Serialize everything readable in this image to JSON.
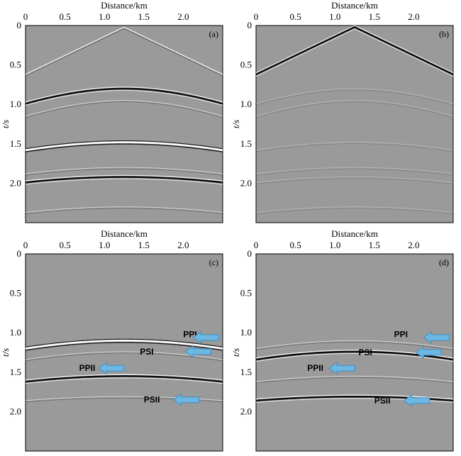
{
  "chart_data": [
    {
      "type": "seismic-section",
      "panel_label": "(a)",
      "xlabel": "Distance/km",
      "ylabel": "t/s",
      "xlim": [
        0,
        2.5
      ],
      "ylim": [
        0,
        2.5
      ],
      "x_ticks": [
        "0",
        "0.5",
        "1.0",
        "1.5",
        "2.0"
      ],
      "y_ticks": [
        "0",
        "0.5",
        "1.0",
        "1.5",
        "2.0"
      ],
      "background_color": "#9a9a9a",
      "events": [
        {
          "shape": "direct",
          "apex_x": 1.25,
          "t0": 0.02,
          "t_edge": 0.62,
          "amplitude": "weak-white"
        },
        {
          "shape": "hyperbola",
          "apex_x": 1.25,
          "t0": 0.8,
          "t_edge": 0.99,
          "amplitude": "strong-black"
        },
        {
          "shape": "hyperbola",
          "apex_x": 1.25,
          "t0": 0.95,
          "t_edge": 1.15,
          "amplitude": "weak"
        },
        {
          "shape": "hyperbola",
          "apex_x": 1.25,
          "t0": 1.48,
          "t_edge": 1.58,
          "amplitude": "strong-white"
        },
        {
          "shape": "hyperbola",
          "apex_x": 1.25,
          "t0": 1.8,
          "t_edge": 1.88,
          "amplitude": "weak"
        },
        {
          "shape": "hyperbola",
          "apex_x": 1.25,
          "t0": 1.92,
          "t_edge": 1.99,
          "amplitude": "strong-black"
        },
        {
          "shape": "hyperbola",
          "apex_x": 1.25,
          "t0": 2.3,
          "t_edge": 2.37,
          "amplitude": "weak"
        }
      ]
    },
    {
      "type": "seismic-section",
      "panel_label": "(b)",
      "xlabel": "Distance/km",
      "ylabel": "t/s",
      "xlim": [
        0,
        2.5
      ],
      "ylim": [
        0,
        2.5
      ],
      "x_ticks": [
        "0",
        "0.5",
        "1.0",
        "1.5",
        "2.0"
      ],
      "y_ticks": [
        "0",
        "0.5",
        "1.0",
        "1.5",
        "2.0"
      ],
      "background_color": "#9a9a9a",
      "events": [
        {
          "shape": "direct",
          "apex_x": 1.25,
          "t0": 0.02,
          "t_edge": 0.62,
          "amplitude": "strong-black"
        },
        {
          "shape": "hyperbola",
          "apex_x": 1.25,
          "t0": 0.8,
          "t_edge": 0.99,
          "amplitude": "faint"
        },
        {
          "shape": "hyperbola",
          "apex_x": 1.25,
          "t0": 0.95,
          "t_edge": 1.15,
          "amplitude": "faint"
        },
        {
          "shape": "hyperbola",
          "apex_x": 1.25,
          "t0": 1.48,
          "t_edge": 1.58,
          "amplitude": "faint"
        },
        {
          "shape": "hyperbola",
          "apex_x": 1.25,
          "t0": 1.8,
          "t_edge": 1.88,
          "amplitude": "faint"
        },
        {
          "shape": "hyperbola",
          "apex_x": 1.25,
          "t0": 1.92,
          "t_edge": 1.99,
          "amplitude": "faint"
        },
        {
          "shape": "hyperbola",
          "apex_x": 1.25,
          "t0": 2.3,
          "t_edge": 2.37,
          "amplitude": "faint"
        }
      ]
    },
    {
      "type": "seismic-section",
      "panel_label": "(c)",
      "xlabel": "Distance/km",
      "ylabel": "t/s",
      "xlim": [
        0,
        2.5
      ],
      "ylim": [
        0,
        2.5
      ],
      "x_ticks": [
        "0",
        "0.5",
        "1.0",
        "1.5",
        "2.0"
      ],
      "y_ticks": [
        "0",
        "0.5",
        "1.0",
        "1.5",
        "2.0"
      ],
      "background_color": "#9a9a9a",
      "events": [
        {
          "shape": "hyperbola",
          "apex_x": 1.25,
          "t0": 1.1,
          "t_edge": 1.2,
          "amplitude": "strong-white"
        },
        {
          "shape": "hyperbola",
          "apex_x": 1.25,
          "t0": 1.24,
          "t_edge": 1.34,
          "amplitude": "weak"
        },
        {
          "shape": "hyperbola",
          "apex_x": 1.25,
          "t0": 1.55,
          "t_edge": 1.62,
          "amplitude": "strong-black"
        },
        {
          "shape": "hyperbola",
          "apex_x": 1.25,
          "t0": 1.81,
          "t_edge": 1.86,
          "amplitude": "weak"
        }
      ],
      "annotations": [
        {
          "text": "PPI",
          "x": 2.0,
          "t": 1.02,
          "arrow_x": 2.45,
          "arrow_t": 1.06
        },
        {
          "text": "PSI",
          "x": 1.45,
          "t": 1.24,
          "arrow_x": 2.35,
          "arrow_t": 1.24
        },
        {
          "text": "PPII",
          "x": 0.68,
          "t": 1.45,
          "arrow_x": 1.25,
          "arrow_t": 1.45
        },
        {
          "text": "PSII",
          "x": 1.5,
          "t": 1.85,
          "arrow_x": 2.2,
          "arrow_t": 1.85
        }
      ]
    },
    {
      "type": "seismic-section",
      "panel_label": "(d)",
      "xlabel": "Distance/km",
      "ylabel": "t/s",
      "xlim": [
        0,
        2.5
      ],
      "ylim": [
        0,
        2.5
      ],
      "x_ticks": [
        "0",
        "0.5",
        "1.0",
        "1.5",
        "2.0"
      ],
      "y_ticks": [
        "0",
        "0.5",
        "1.0",
        "1.5",
        "2.0"
      ],
      "background_color": "#9a9a9a",
      "events": [
        {
          "shape": "hyperbola",
          "apex_x": 1.25,
          "t0": 1.1,
          "t_edge": 1.2,
          "amplitude": "weak"
        },
        {
          "shape": "hyperbola",
          "apex_x": 1.25,
          "t0": 1.24,
          "t_edge": 1.34,
          "amplitude": "strong-black"
        },
        {
          "shape": "hyperbola",
          "apex_x": 1.25,
          "t0": 1.55,
          "t_edge": 1.62,
          "amplitude": "weak"
        },
        {
          "shape": "hyperbola",
          "apex_x": 1.25,
          "t0": 1.81,
          "t_edge": 1.86,
          "amplitude": "strong-black"
        }
      ],
      "annotations": [
        {
          "text": "PPI",
          "x": 1.75,
          "t": 1.02,
          "arrow_x": 2.45,
          "arrow_t": 1.06
        },
        {
          "text": "PSI",
          "x": 1.3,
          "t": 1.25,
          "arrow_x": 2.35,
          "arrow_t": 1.25
        },
        {
          "text": "PPII",
          "x": 0.65,
          "t": 1.45,
          "arrow_x": 1.25,
          "arrow_t": 1.45
        },
        {
          "text": "PSII",
          "x": 1.5,
          "t": 1.86,
          "arrow_x": 2.2,
          "arrow_t": 1.86
        }
      ]
    }
  ],
  "colors": {
    "background": "#9a9a9a",
    "arrow_fill": "#6cb7e3",
    "arrow_stroke": "#3f8fc4",
    "reflector_dark": "#0d0d0d",
    "reflector_light": "#ffffff"
  }
}
